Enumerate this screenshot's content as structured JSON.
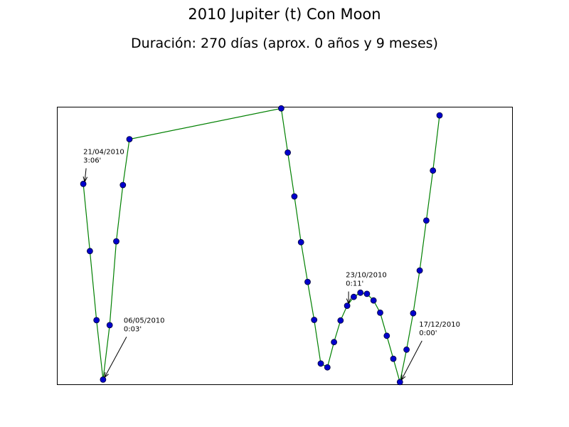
{
  "chart_data": {
    "type": "line",
    "title": "2010 Jupiter (t) Con Moon",
    "subtitle": "Duración: 270 días (aprox. 0 años y 9 meses)",
    "xlabel": "",
    "ylabel": "",
    "grid": false,
    "line_color": "#008000",
    "marker_fill": "#0000cc",
    "marker_edge": "#000033",
    "series": [
      {
        "values": [
          {
            "x": 0,
            "y": 0.722
          },
          {
            "x": 1,
            "y": 0.48
          },
          {
            "x": 2,
            "y": 0.231
          },
          {
            "x": 3,
            "y": 0.017
          },
          {
            "x": 4,
            "y": 0.213
          },
          {
            "x": 5,
            "y": 0.515
          },
          {
            "x": 6,
            "y": 0.718
          },
          {
            "x": 7,
            "y": 0.883
          },
          {
            "x": 30,
            "y": 0.994
          },
          {
            "x": 31,
            "y": 0.835
          },
          {
            "x": 32,
            "y": 0.677
          },
          {
            "x": 33,
            "y": 0.512
          },
          {
            "x": 34,
            "y": 0.369
          },
          {
            "x": 35,
            "y": 0.232
          },
          {
            "x": 36,
            "y": 0.075
          },
          {
            "x": 37,
            "y": 0.061
          },
          {
            "x": 38,
            "y": 0.152
          },
          {
            "x": 39,
            "y": 0.23
          },
          {
            "x": 40,
            "y": 0.283
          },
          {
            "x": 41,
            "y": 0.315
          },
          {
            "x": 42,
            "y": 0.33
          },
          {
            "x": 43,
            "y": 0.326
          },
          {
            "x": 44,
            "y": 0.302
          },
          {
            "x": 45,
            "y": 0.258
          },
          {
            "x": 46,
            "y": 0.175
          },
          {
            "x": 47,
            "y": 0.092
          },
          {
            "x": 48,
            "y": 0.008
          },
          {
            "x": 49,
            "y": 0.125
          },
          {
            "x": 50,
            "y": 0.256
          },
          {
            "x": 51,
            "y": 0.41
          },
          {
            "x": 52,
            "y": 0.59
          },
          {
            "x": 53,
            "y": 0.77
          },
          {
            "x": 54,
            "y": 0.969
          }
        ]
      }
    ],
    "xlim": [
      -4,
      65
    ],
    "ylim": [
      1.0,
      0.0
    ],
    "annotations": [
      {
        "point_index": 0,
        "line1": "21/04/2010",
        "line2": "3:06'"
      },
      {
        "point_index": 3,
        "line1": "06/05/2010",
        "line2": "0:03'"
      },
      {
        "point_index": 18,
        "line1": "23/10/2010",
        "line2": "0:11'"
      },
      {
        "point_index": 26,
        "line1": "17/12/2010",
        "line2": "0:00'"
      }
    ]
  }
}
